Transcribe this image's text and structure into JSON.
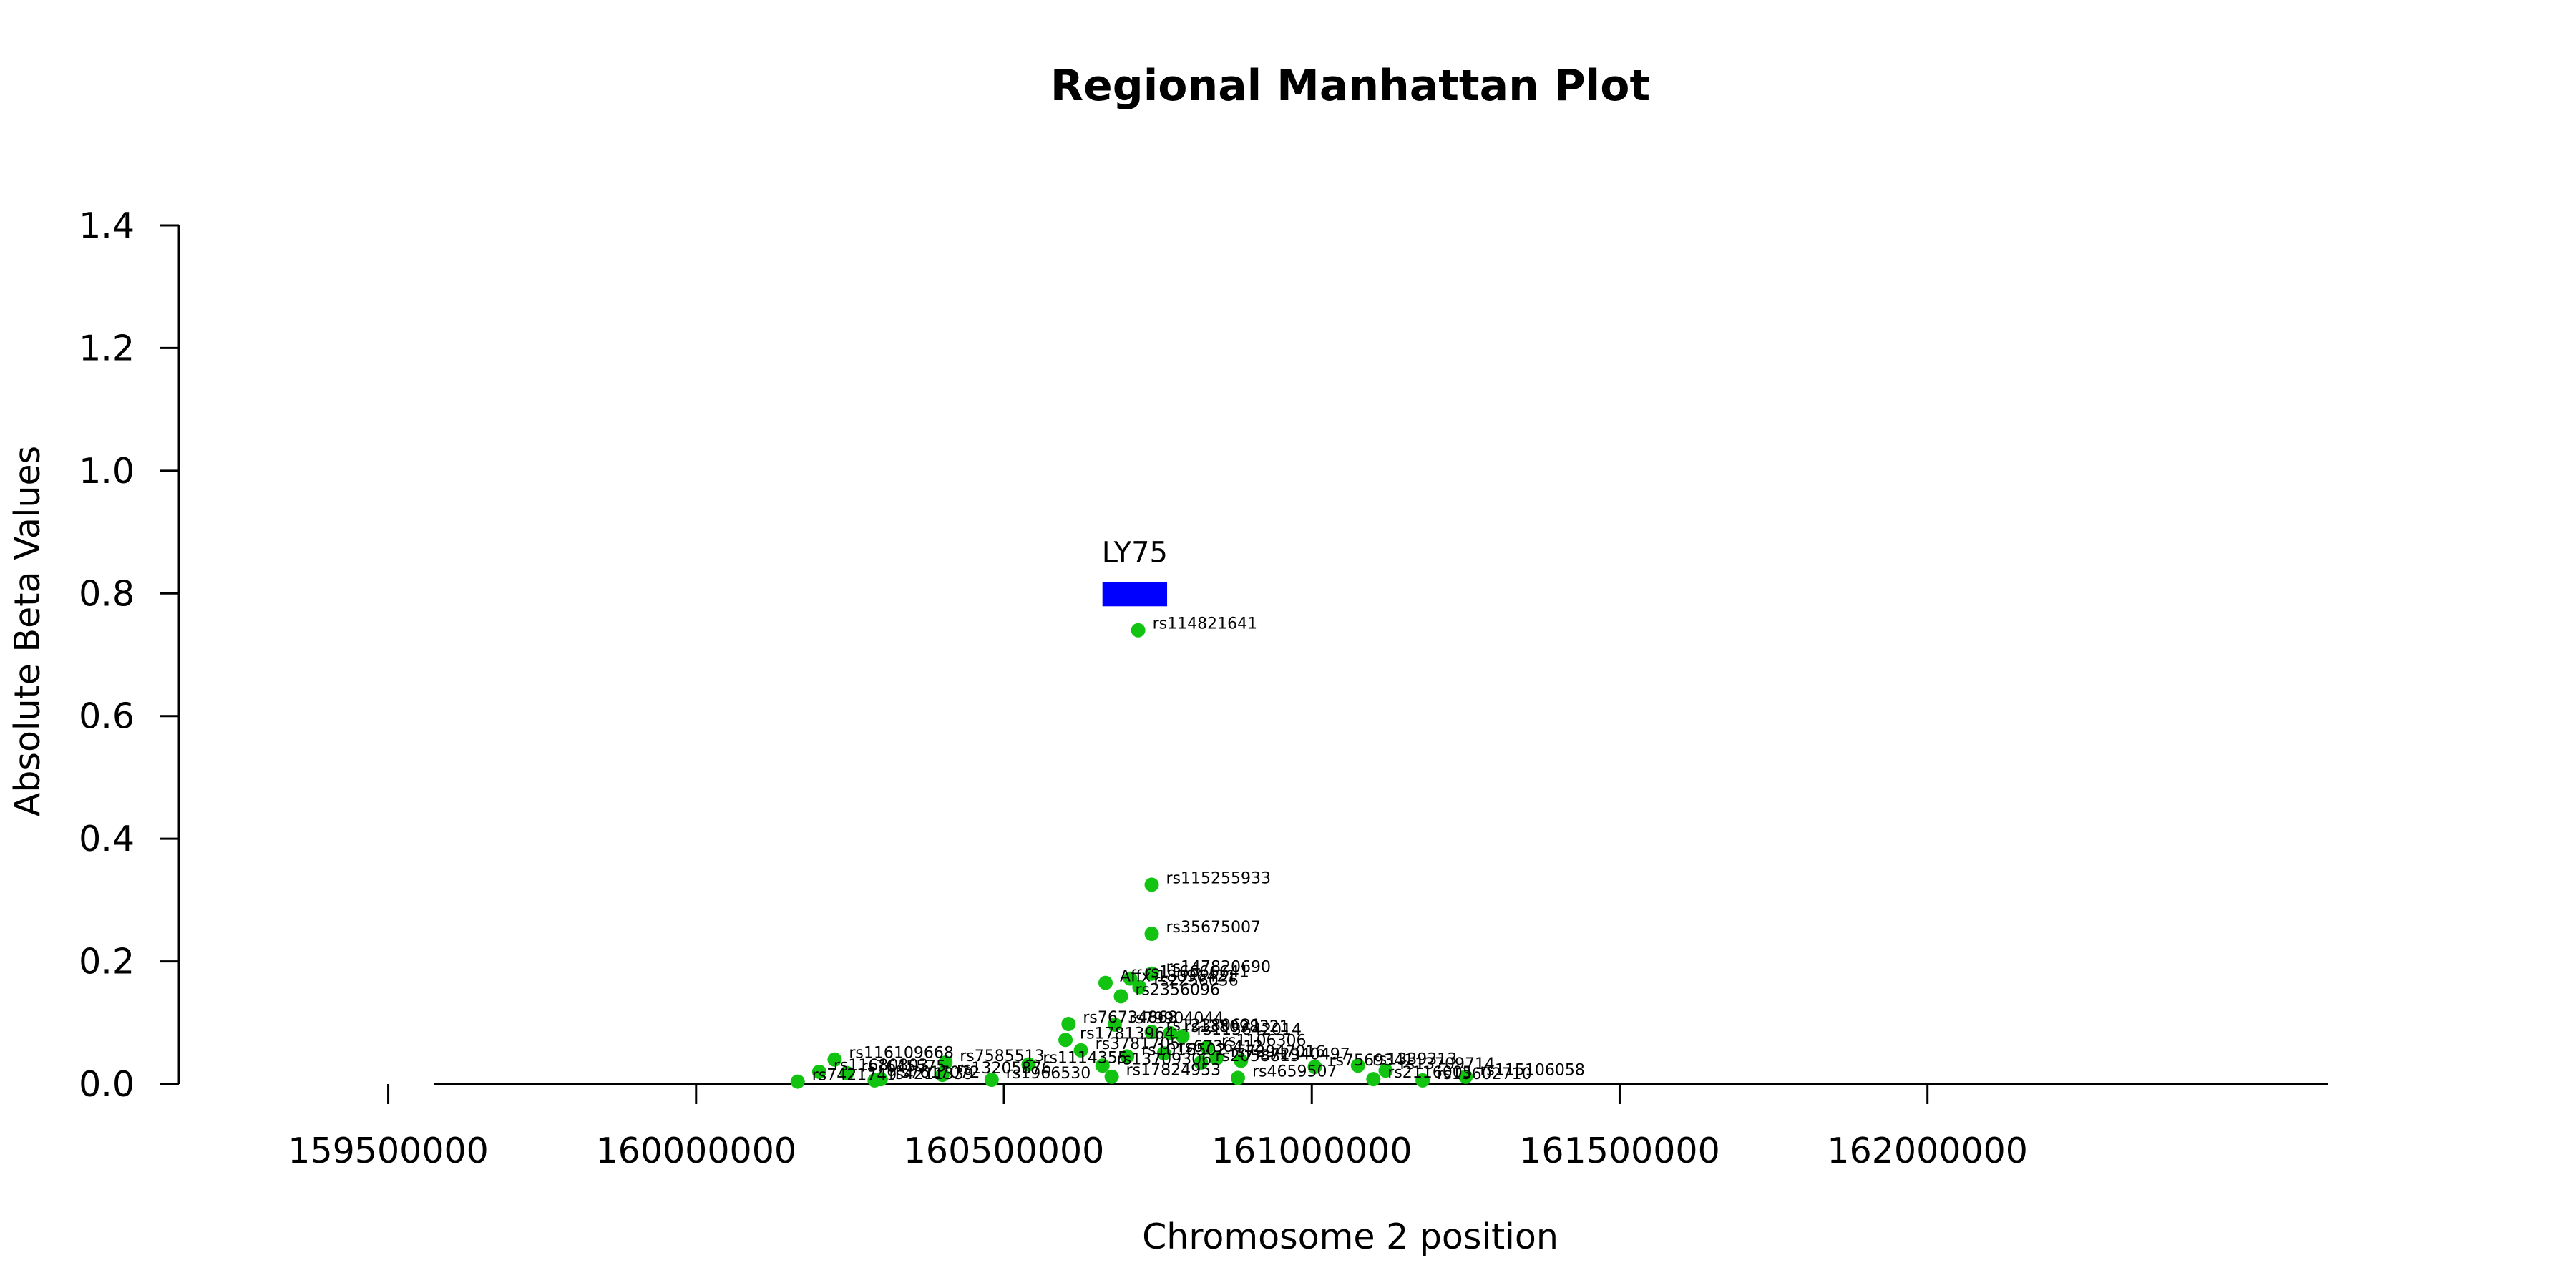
{
  "chart_data": {
    "type": "scatter",
    "title": "Regional Manhattan Plot",
    "xlabel": "Chromosome 2 position",
    "ylabel": "Absolute Beta Values",
    "xlim": [
      159160000,
      162650000
    ],
    "ylim": [
      0,
      1.4
    ],
    "xticks": [
      159500000,
      160000000,
      160500000,
      161000000,
      161500000,
      162000000
    ],
    "xtick_labels": [
      "159500000",
      "160000000",
      "160500000",
      "161000000",
      "161500000",
      "162000000"
    ],
    "yticks": [
      0,
      0.2,
      0.4,
      0.6,
      0.8,
      1.0,
      1.2,
      1.4
    ],
    "ytick_labels": [
      "0.0",
      "0.2",
      "0.4",
      "0.6",
      "0.8",
      "1.0",
      "1.2",
      "1.4"
    ],
    "grid": false,
    "colors": {
      "points": "#12c312",
      "gene": "#0000ff",
      "text": "#000000"
    },
    "gene": {
      "name": "LY75",
      "start": 160660000,
      "end": 160765000,
      "y": 0.8
    },
    "points": [
      {
        "id": "rs114821641",
        "x": 160718000,
        "y": 0.74
      },
      {
        "id": "rs115255933",
        "x": 160740000,
        "y": 0.325
      },
      {
        "id": "rs35675007",
        "x": 160740000,
        "y": 0.245
      },
      {
        "id": "rs147820690",
        "x": 160740000,
        "y": 0.18
      },
      {
        "id": "rs116666641",
        "x": 160705000,
        "y": 0.172
      },
      {
        "id": "Affx-18096421",
        "x": 160665000,
        "y": 0.165
      },
      {
        "id": "rs2256036",
        "x": 160720000,
        "y": 0.158
      },
      {
        "id": "rs2356096",
        "x": 160690000,
        "y": 0.143
      },
      {
        "id": "rs76734868",
        "x": 160605000,
        "y": 0.098
      },
      {
        "id": "rs79904044",
        "x": 160680000,
        "y": 0.097
      },
      {
        "id": "rs17813964",
        "x": 160600000,
        "y": 0.072
      },
      {
        "id": "rs12380621",
        "x": 160740000,
        "y": 0.085
      },
      {
        "id": "rs138098321",
        "x": 160770000,
        "y": 0.083
      },
      {
        "id": "rs115642014",
        "x": 160790000,
        "y": 0.078
      },
      {
        "id": "rs1106306",
        "x": 160830000,
        "y": 0.06
      },
      {
        "id": "rs1339313",
        "x": 161075000,
        "y": 0.03
      },
      {
        "id": "rs13709714",
        "x": 161120000,
        "y": 0.022
      },
      {
        "id": "rs116109668",
        "x": 160225000,
        "y": 0.04
      },
      {
        "id": "rs7585513",
        "x": 160405000,
        "y": 0.035
      },
      {
        "id": "rs1114355",
        "x": 160540000,
        "y": 0.032
      },
      {
        "id": "rs13709306",
        "x": 160660000,
        "y": 0.03
      },
      {
        "id": "rs72947016",
        "x": 160845000,
        "y": 0.042
      },
      {
        "id": "rs72940497",
        "x": 160885000,
        "y": 0.038
      },
      {
        "id": "rs11680803",
        "x": 160200000,
        "y": 0.02
      },
      {
        "id": "rs7645575",
        "x": 160245000,
        "y": 0.018
      },
      {
        "id": "rs13205876",
        "x": 160400000,
        "y": 0.015
      },
      {
        "id": "rs7617072",
        "x": 160300000,
        "y": 0.008
      },
      {
        "id": "rs4211339",
        "x": 160290000,
        "y": 0.006
      },
      {
        "id": "rs1966530",
        "x": 160480000,
        "y": 0.007
      },
      {
        "id": "rs7421749",
        "x": 160165000,
        "y": 0.004
      },
      {
        "id": "rs3781705",
        "x": 160625000,
        "y": 0.055
      },
      {
        "id": "rs17824953",
        "x": 160675000,
        "y": 0.012
      },
      {
        "id": "rs4659507",
        "x": 160880000,
        "y": 0.01
      },
      {
        "id": "rs2116005",
        "x": 161100000,
        "y": 0.008
      },
      {
        "id": "rs115106058",
        "x": 161250000,
        "y": 0.012
      },
      {
        "id": "rs13602710",
        "x": 161180000,
        "y": 0.006
      },
      {
        "id": "rs7569341",
        "x": 161005000,
        "y": 0.028
      },
      {
        "id": "rs1016502",
        "x": 160700000,
        "y": 0.045
      },
      {
        "id": "rs6736412",
        "x": 160760000,
        "y": 0.05
      },
      {
        "id": "rs2058813",
        "x": 160820000,
        "y": 0.035
      }
    ]
  }
}
